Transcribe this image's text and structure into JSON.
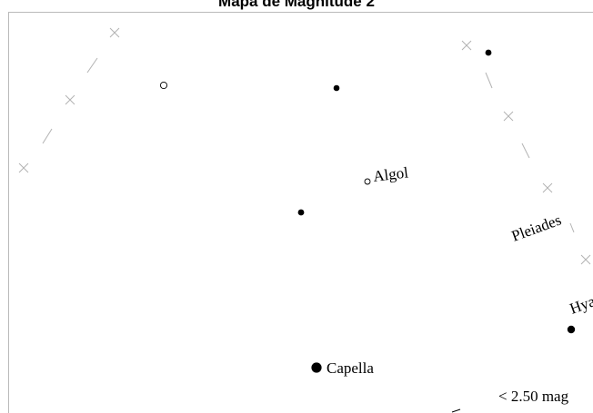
{
  "title": "Mapa de Magnitude  2",
  "colors": {
    "star": "#000000",
    "ecliptic": "#b3b3b3",
    "frame": "#b9b9b9"
  },
  "labels": {
    "algol": "Algol",
    "capella": "Capella",
    "pleiades": "Pleiades",
    "hyades": "Hyades",
    "magnitude_limit": "< 2.50 mag"
  }
}
